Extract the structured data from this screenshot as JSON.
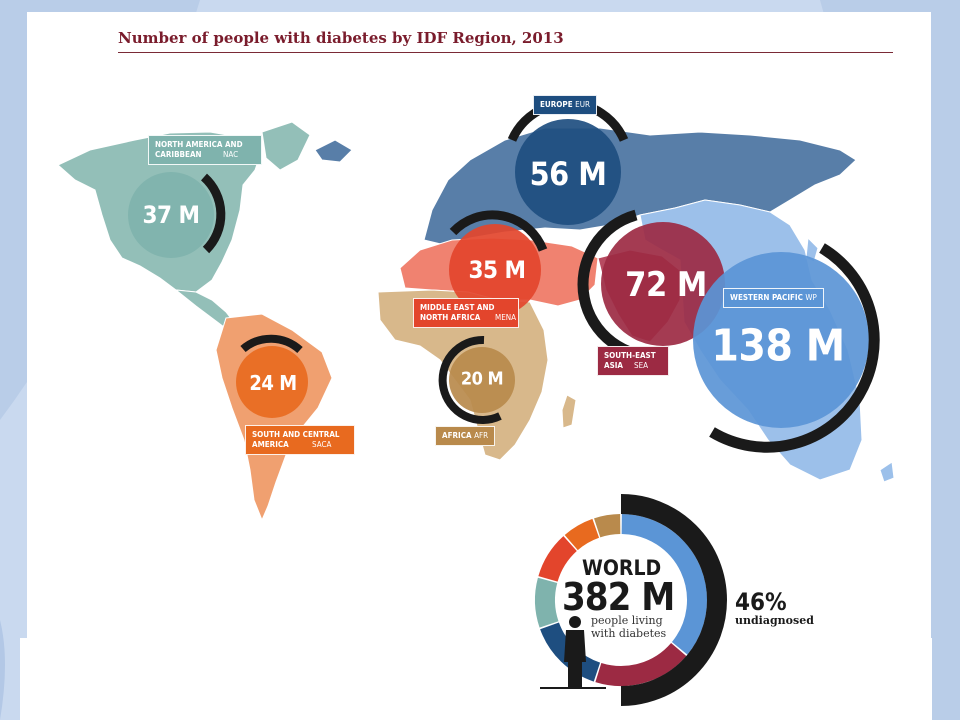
{
  "title": "Number of people with diabetes by IDF Region, 2013",
  "colors": {
    "nac": "#7fb3ad",
    "eur": "#1e4e80",
    "mena": "#e3452c",
    "sea": "#9c2a43",
    "wp": "#5b95d6",
    "saca": "#e86a1f",
    "afr": "#b98a4c",
    "undiagnosed_arc": "#1a1a1a"
  },
  "chart_data": {
    "type": "pie",
    "title": "Number of people with diabetes by IDF Region, 2013",
    "regions": [
      {
        "code": "NAC",
        "name": "NORTH AMERICA AND CARIBBEAN",
        "value_label": "37 M",
        "value": 37,
        "color": "#7fb3ad"
      },
      {
        "code": "EUR",
        "name": "EUROPE",
        "value_label": "56 M",
        "value": 56,
        "color": "#1e4e80"
      },
      {
        "code": "MENA",
        "name": "MIDDLE EAST AND NORTH AFRICA",
        "value_label": "35 M",
        "value": 35,
        "color": "#e3452c"
      },
      {
        "code": "SEA",
        "name": "SOUTH-EAST ASIA",
        "value_label": "72 M",
        "value": 72,
        "color": "#9c2a43"
      },
      {
        "code": "WP",
        "name": "WESTERN PACIFIC",
        "value_label": "138 M",
        "value": 138,
        "color": "#5b95d6"
      },
      {
        "code": "SACA",
        "name": "SOUTH AND CENTRAL AMERICA",
        "value_label": "24 M",
        "value": 24,
        "color": "#e86a1f"
      },
      {
        "code": "AFR",
        "name": "AFRICA",
        "value_label": "20 M",
        "value": 20,
        "color": "#b98a4c"
      }
    ],
    "world": {
      "label": "WORLD",
      "value_label": "382 M",
      "value": 382,
      "subtitle": "people living with diabetes",
      "undiagnosed_label": "46%",
      "undiagnosed_text": "undiagnosed",
      "undiagnosed_pct": 46
    }
  }
}
